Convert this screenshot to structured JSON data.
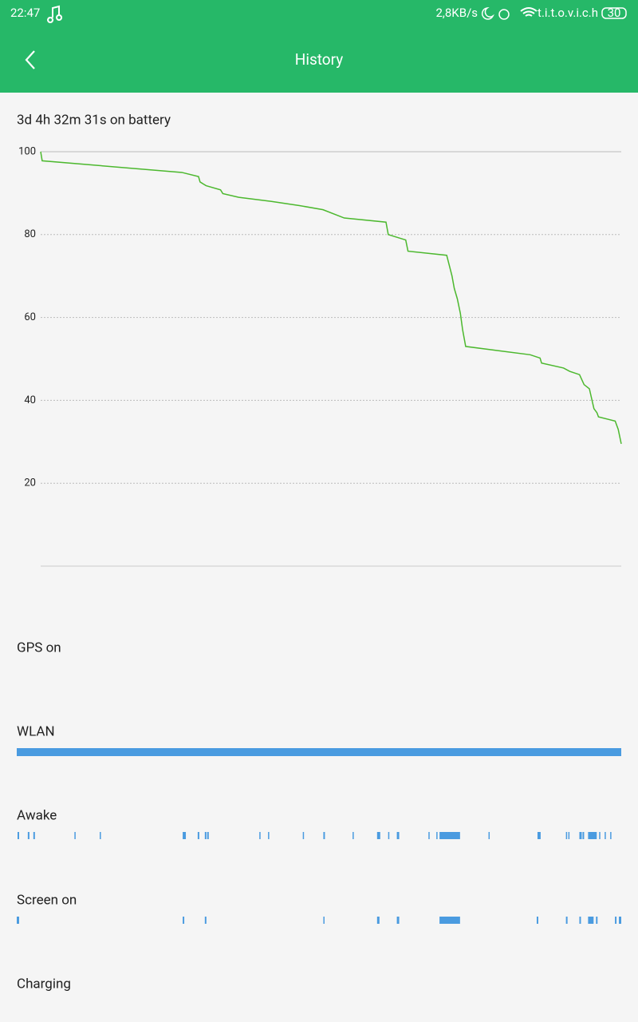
{
  "status_bar": {
    "time": "22:47",
    "speed": "2,8KB/s",
    "carrier": "t.i.t.o.v.i.c.h",
    "battery": "30"
  },
  "header": {
    "title": "History"
  },
  "summary": "3d 4h 32m 31s on battery",
  "chart_data": {
    "type": "line",
    "xlim": [
      0,
      76.5
    ],
    "ylim": [
      0,
      100
    ],
    "yticks": [
      20,
      40,
      60,
      80,
      100
    ],
    "grid": true,
    "x": [
      0,
      0.2,
      18.6,
      20.8,
      21.0,
      21.8,
      23.7,
      24.0,
      26.1,
      30.4,
      34.1,
      37.2,
      40.0,
      45.5,
      45.8,
      48.1,
      48.4,
      53.5,
      54.2,
      54.5,
      54.9,
      55.3,
      55.6,
      56.0,
      64.5,
      65.8,
      66.0,
      68.9,
      69.7,
      71.0,
      71.6,
      72.3,
      72.9,
      73.3,
      73.5,
      75.7,
      76.1,
      76.5
    ],
    "series": [
      {
        "color": "#4cb82e",
        "values": [
          100,
          97.8,
          95,
          94,
          92.7,
          91.8,
          90.8,
          89.9,
          89,
          88,
          87,
          86,
          84,
          83,
          80,
          78.7,
          76,
          75,
          70,
          67,
          64.5,
          61,
          57,
          53,
          51,
          50.2,
          49,
          47.8,
          47,
          46.2,
          43.8,
          42.8,
          38,
          37,
          36,
          35,
          33,
          29.5
        ]
      }
    ]
  },
  "tracks": [
    {
      "label": "GPS on",
      "segments": []
    },
    {
      "label": "WLAN",
      "segments": [
        [
          0,
          76.5
        ]
      ]
    },
    {
      "label": "Awake",
      "segments": [
        [
          0.1,
          0.3
        ],
        [
          1.4,
          1.6
        ],
        [
          2.1,
          2.3
        ],
        [
          7.3,
          7.4
        ],
        [
          10.5,
          10.6
        ],
        [
          21.0,
          21.4
        ],
        [
          22.9,
          23.1
        ],
        [
          23.8,
          24.0
        ],
        [
          24.1,
          24.3
        ],
        [
          30.7,
          30.8
        ],
        [
          31.8,
          31.9
        ],
        [
          36.2,
          36.3
        ],
        [
          38.8,
          39.0
        ],
        [
          42.5,
          42.6
        ],
        [
          45.6,
          46.0
        ],
        [
          47.0,
          47.1
        ],
        [
          48.1,
          48.4
        ],
        [
          52.1,
          52.2
        ],
        [
          53.1,
          53.2
        ],
        [
          53.5,
          56.1
        ],
        [
          59.7,
          59.8
        ],
        [
          65.9,
          66.3
        ],
        [
          69.5,
          69.6
        ],
        [
          69.8,
          69.9
        ],
        [
          71.2,
          71.5
        ],
        [
          71.6,
          71.8
        ],
        [
          72.3,
          73.4
        ],
        [
          73.7,
          73.8
        ],
        [
          74.4,
          74.5
        ],
        [
          75.1,
          75.2
        ]
      ]
    },
    {
      "label": "Screen on",
      "segments": [
        [
          0,
          0.3
        ],
        [
          21.0,
          21.2
        ],
        [
          23.8,
          24.0
        ],
        [
          38.8,
          38.9
        ],
        [
          45.6,
          45.9
        ],
        [
          48.1,
          48.4
        ],
        [
          53.5,
          56.1
        ],
        [
          65.8,
          66.0
        ],
        [
          69.5,
          69.7
        ],
        [
          71.2,
          71.4
        ],
        [
          72.3,
          73.0
        ],
        [
          73.3,
          73.5
        ],
        [
          75.7,
          75.9
        ],
        [
          76.2,
          76.5
        ]
      ]
    },
    {
      "label": "Charging",
      "segments": []
    }
  ]
}
